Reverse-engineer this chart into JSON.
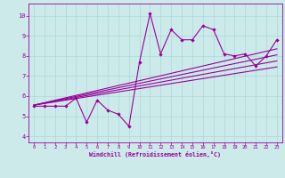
{
  "xlabel": "Windchill (Refroidissement éolien,°C)",
  "bg_color": "#cceaea",
  "line_color": "#990099",
  "xlim": [
    -0.5,
    23.5
  ],
  "ylim": [
    3.7,
    10.6
  ],
  "xticks": [
    0,
    1,
    2,
    3,
    4,
    5,
    6,
    7,
    8,
    9,
    10,
    11,
    12,
    13,
    14,
    15,
    16,
    17,
    18,
    19,
    20,
    21,
    22,
    23
  ],
  "yticks": [
    4,
    5,
    6,
    7,
    8,
    9,
    10
  ],
  "scatter_x": [
    0,
    1,
    2,
    3,
    4,
    5,
    6,
    7,
    8,
    9,
    10,
    11,
    12,
    13,
    14,
    15,
    16,
    17,
    18,
    19,
    20,
    21,
    22,
    23
  ],
  "scatter_y": [
    5.5,
    5.5,
    5.5,
    5.5,
    5.9,
    4.7,
    5.8,
    5.3,
    5.1,
    4.5,
    7.7,
    10.1,
    8.1,
    9.3,
    8.8,
    8.8,
    9.5,
    9.3,
    8.1,
    8.0,
    8.1,
    7.5,
    8.0,
    8.8
  ],
  "reg_lines": [
    {
      "x0": 0,
      "y0": 5.55,
      "x1": 23,
      "y1": 8.35
    },
    {
      "x0": 0,
      "y0": 5.55,
      "x1": 23,
      "y1": 8.05
    },
    {
      "x0": 0,
      "y0": 5.55,
      "x1": 23,
      "y1": 7.75
    },
    {
      "x0": 0,
      "y0": 5.55,
      "x1": 23,
      "y1": 7.45
    }
  ],
  "grid_color": "#aad8d8",
  "font_family": "monospace"
}
